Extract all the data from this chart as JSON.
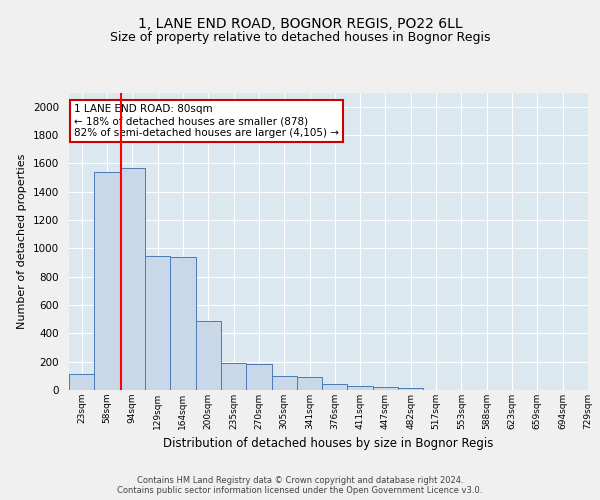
{
  "title": "1, LANE END ROAD, BOGNOR REGIS, PO22 6LL",
  "subtitle": "Size of property relative to detached houses in Bognor Regis",
  "xlabel": "Distribution of detached houses by size in Bognor Regis",
  "ylabel": "Number of detached properties",
  "bar_values": [
    110,
    1540,
    1565,
    945,
    940,
    490,
    190,
    185,
    100,
    95,
    40,
    30,
    20,
    15,
    0,
    0,
    0,
    0,
    0,
    0
  ],
  "bin_labels": [
    "23sqm",
    "58sqm",
    "94sqm",
    "129sqm",
    "164sqm",
    "200sqm",
    "235sqm",
    "270sqm",
    "305sqm",
    "341sqm",
    "376sqm",
    "411sqm",
    "447sqm",
    "482sqm",
    "517sqm",
    "553sqm",
    "588sqm",
    "623sqm",
    "659sqm",
    "694sqm",
    "729sqm"
  ],
  "bar_color": "#c8d8e8",
  "bar_edge_color": "#4a7ab5",
  "background_color": "#dce8f0",
  "grid_color": "#ffffff",
  "redline_bin_index": 1.55,
  "annotation_text": "1 LANE END ROAD: 80sqm\n← 18% of detached houses are smaller (878)\n82% of semi-detached houses are larger (4,105) →",
  "annotation_box_color": "#ffffff",
  "annotation_box_edge": "#cc0000",
  "ylim": [
    0,
    2100
  ],
  "yticks": [
    0,
    200,
    400,
    600,
    800,
    1000,
    1200,
    1400,
    1600,
    1800,
    2000
  ],
  "title_fontsize": 10,
  "subtitle_fontsize": 9,
  "xlabel_fontsize": 8.5,
  "ylabel_fontsize": 8
}
